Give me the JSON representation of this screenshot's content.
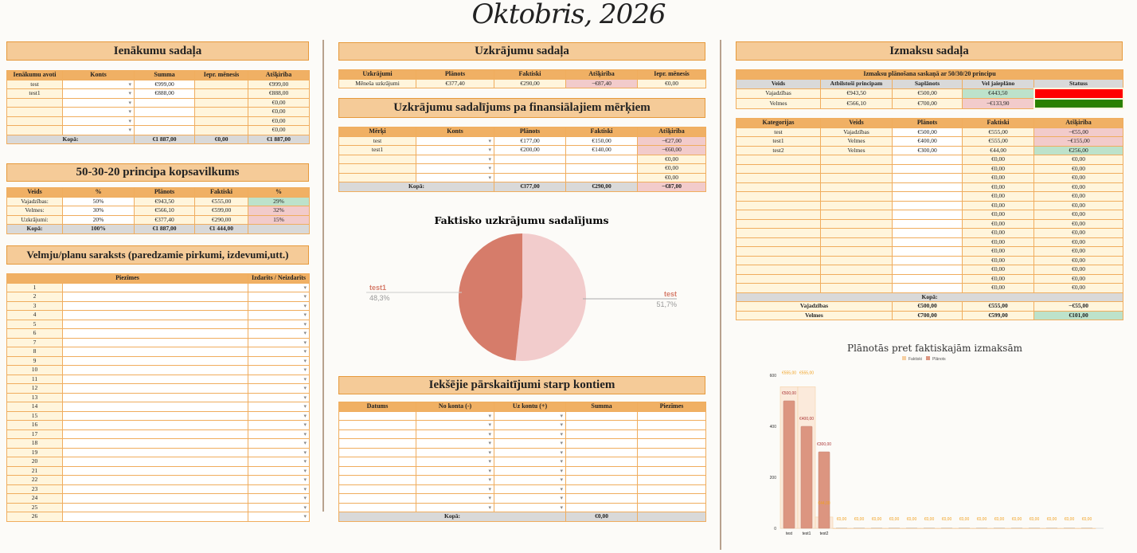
{
  "page_title": "Oktobris, 2026",
  "sections": {
    "income": "Ienākumu sadaļa",
    "summary": "50-30-20 principa kopsavilkums",
    "wishlist": "Velmju/planu saraksts (paredzamie pirkumi, izdevumi,utt.)",
    "savings": "Uzkrājumu sadaļa",
    "goals": "Uzkrājumu sadalījums pa finansiālajiem mērķiem",
    "transfers": "Iekšējie pārskaitījumi starp kontiem",
    "expenses": "Izmaksu sadaļa"
  },
  "tables": {
    "income": {
      "headers": [
        "Ienākumu avoti",
        "Konts",
        "Summa",
        "Iepr. mēnesis",
        "Atšķirība"
      ],
      "rows": [
        [
          "test",
          "",
          "€999,00",
          "",
          "€999,00"
        ],
        [
          "test1",
          "",
          "€888,00",
          "",
          "€888,00"
        ],
        [
          "",
          "",
          "",
          "",
          "€0,00"
        ],
        [
          "",
          "",
          "",
          "",
          "€0,00"
        ],
        [
          "",
          "",
          "",
          "",
          "€0,00"
        ],
        [
          "",
          "",
          "",
          "",
          "€0,00"
        ]
      ],
      "totals": [
        [
          {
            "v": "Kopā:",
            "span": 2
          },
          "€1 887,00",
          "€0,00",
          "€1 887,00"
        ]
      ]
    },
    "summary": {
      "headers": [
        "Veids",
        "%",
        "Plānots",
        "Faktiski",
        "%"
      ],
      "rows": [
        [
          "Vajadzības:",
          "50%",
          "€943,50",
          "€555,00",
          {
            "v": "29%",
            "tone": "pos"
          }
        ],
        [
          "Velmes:",
          "30%",
          "€566,10",
          "€599,00",
          {
            "v": "32%",
            "tone": "neg"
          }
        ],
        [
          "Uzkrājumi:",
          "20%",
          "€377,40",
          "€290,00",
          {
            "v": "15%",
            "tone": "neg"
          }
        ]
      ],
      "totals": [
        [
          "Kopā:",
          "100%",
          "€1 887,00",
          "€1 444,00",
          ""
        ]
      ]
    },
    "wishlist": {
      "headers": [
        "",
        "Piezīmes",
        "Izdarīts / Neizdarīts"
      ],
      "rows": [
        [
          "1",
          "",
          ""
        ],
        [
          "2",
          "",
          ""
        ],
        [
          "3",
          "",
          ""
        ],
        [
          "4",
          "",
          ""
        ],
        [
          "5",
          "",
          ""
        ],
        [
          "6",
          "",
          ""
        ],
        [
          "7",
          "",
          ""
        ],
        [
          "8",
          "",
          ""
        ],
        [
          "9",
          "",
          ""
        ],
        [
          "10",
          "",
          ""
        ],
        [
          "11",
          "",
          ""
        ],
        [
          "12",
          "",
          ""
        ],
        [
          "13",
          "",
          ""
        ],
        [
          "14",
          "",
          ""
        ],
        [
          "15",
          "",
          ""
        ],
        [
          "16",
          "",
          ""
        ],
        [
          "17",
          "",
          ""
        ],
        [
          "18",
          "",
          ""
        ],
        [
          "19",
          "",
          ""
        ],
        [
          "20",
          "",
          ""
        ],
        [
          "21",
          "",
          ""
        ],
        [
          "22",
          "",
          ""
        ],
        [
          "23",
          "",
          ""
        ],
        [
          "24",
          "",
          ""
        ],
        [
          "25",
          "",
          ""
        ],
        [
          "26",
          "",
          ""
        ]
      ]
    },
    "savings": {
      "headers": [
        "Uzkrājumi",
        "Plānots",
        "Faktiski",
        "Atšķirība",
        "Iepr. mēnesis"
      ],
      "rows": [
        [
          "Mēneša uzkrājumi",
          "€377,40",
          "€290,00",
          {
            "v": "−€87,40",
            "tone": "neg"
          },
          "€0,00"
        ]
      ]
    },
    "goals": {
      "headers": [
        "Mērķi",
        "Konts",
        "Plānots",
        "Faktiski",
        "Atšķirība"
      ],
      "rows": [
        [
          "test",
          "",
          "€177,00",
          "€150,00",
          {
            "v": "−€27,00",
            "tone": "neg"
          }
        ],
        [
          "test1",
          "",
          "€200,00",
          "€140,00",
          {
            "v": "−€60,00",
            "tone": "neg"
          }
        ],
        [
          "",
          "",
          "",
          "",
          "€0,00"
        ],
        [
          "",
          "",
          "",
          "",
          "€0,00"
        ],
        [
          "",
          "",
          "",
          "",
          "€0,00"
        ]
      ],
      "totals": [
        [
          {
            "v": "Kopā:",
            "span": 2
          },
          "€377,00",
          "€290,00",
          {
            "v": "−€87,00",
            "tone": "neg"
          }
        ]
      ]
    },
    "transfers": {
      "headers": [
        "Datums",
        "No konta (-)",
        "Uz kontu (+)",
        "Summa",
        "Piezīmes"
      ],
      "rows": [
        [
          "",
          "",
          "",
          "",
          ""
        ],
        [
          "",
          "",
          "",
          "",
          ""
        ],
        [
          "",
          "",
          "",
          "",
          ""
        ],
        [
          "",
          "",
          "",
          "",
          ""
        ],
        [
          "",
          "",
          "",
          "",
          ""
        ],
        [
          "",
          "",
          "",
          "",
          ""
        ],
        [
          "",
          "",
          "",
          "",
          ""
        ],
        [
          "",
          "",
          "",
          "",
          ""
        ],
        [
          "",
          "",
          "",
          "",
          ""
        ],
        [
          "",
          "",
          "",
          "",
          ""
        ],
        [
          "",
          "",
          "",
          "",
          ""
        ]
      ],
      "totals": [
        [
          {
            "v": "Kopā:",
            "span": 3
          },
          "€0,00",
          ""
        ]
      ]
    },
    "planning": {
      "caption": "Izmaksu plānošana saskaņā ar 50/30/20 principu",
      "headers": [
        "Veids",
        "Atbilstoši principam",
        "Saplānots",
        "Vel jaieplāno",
        "Statuss"
      ],
      "rows": [
        [
          "Vajadzības",
          "€943,50",
          "€500,00",
          {
            "v": "€443,50",
            "tone": "pos"
          },
          {
            "v": "",
            "tone": "red"
          }
        ],
        [
          "Velmes",
          "€566,10",
          "€700,00",
          {
            "v": "−€133,90",
            "tone": "neg"
          },
          {
            "v": "",
            "tone": "green"
          }
        ]
      ]
    },
    "categories": {
      "headers": [
        "Kategorijas",
        "Veids",
        "Plānots",
        "Faktiski",
        "Atšķirība"
      ],
      "rows": [
        [
          "test",
          "Vajadzības",
          "€500,00",
          "€555,00",
          {
            "v": "−€55,00",
            "tone": "neg"
          }
        ],
        [
          "test1",
          "Velmes",
          "€400,00",
          "€555,00",
          {
            "v": "−€155,00",
            "tone": "neg"
          }
        ],
        [
          "test2",
          "Velmes",
          "€300,00",
          "€44,00",
          {
            "v": "€256,00",
            "tone": "pos"
          }
        ],
        [
          "",
          "",
          "",
          "€0,00",
          "€0,00"
        ],
        [
          "",
          "",
          "",
          "€0,00",
          "€0,00"
        ],
        [
          "",
          "",
          "",
          "€0,00",
          "€0,00"
        ],
        [
          "",
          "",
          "",
          "€0,00",
          "€0,00"
        ],
        [
          "",
          "",
          "",
          "€0,00",
          "€0,00"
        ],
        [
          "",
          "",
          "",
          "€0,00",
          "€0,00"
        ],
        [
          "",
          "",
          "",
          "€0,00",
          "€0,00"
        ],
        [
          "",
          "",
          "",
          "€0,00",
          "€0,00"
        ],
        [
          "",
          "",
          "",
          "€0,00",
          "€0,00"
        ],
        [
          "",
          "",
          "",
          "€0,00",
          "€0,00"
        ],
        [
          "",
          "",
          "",
          "€0,00",
          "€0,00"
        ],
        [
          "",
          "",
          "",
          "€0,00",
          "€0,00"
        ],
        [
          "",
          "",
          "",
          "€0,00",
          "€0,00"
        ],
        [
          "",
          "",
          "",
          "€0,00",
          "€0,00"
        ],
        [
          "",
          "",
          "",
          "€0,00",
          "€0,00"
        ]
      ],
      "totals": [
        [
          {
            "v": "Kopā:",
            "span": 5,
            "tone": "g"
          }
        ],
        [
          {
            "v": "Vajadzības",
            "span": 2,
            "tone": "b"
          },
          {
            "v": "€500,00",
            "tone": "b"
          },
          {
            "v": "€555,00",
            "tone": "b"
          },
          {
            "v": "−€55,00",
            "tone": "b"
          }
        ],
        [
          {
            "v": "Velmes",
            "span": 2,
            "tone": "b"
          },
          {
            "v": "€700,00",
            "tone": "b"
          },
          {
            "v": "€599,00",
            "tone": "b"
          },
          {
            "v": "€101,00",
            "tone": "pos"
          }
        ]
      ]
    }
  },
  "chart_data": [
    {
      "type": "pie",
      "title": "Faktisko uzkrājumu sadalījums",
      "labels": [
        "test",
        "test1"
      ],
      "values": [
        51.7,
        48.3
      ],
      "value_labels": [
        "51,7%",
        "48,3%"
      ],
      "colors": [
        "#f2cccc",
        "#d67c6a"
      ]
    },
    {
      "type": "bar",
      "title": "Plānotās pret faktiskajām izmaksām",
      "legend": [
        "Faktiski",
        "Plānots"
      ],
      "legend_position": "top",
      "categories": [
        "test",
        "test1",
        "test2",
        "",
        "",
        "",
        "",
        "",
        "",
        "",
        "",
        "",
        "",
        "",
        "",
        "",
        "",
        ""
      ],
      "series": [
        {
          "name": "Faktiski",
          "values": [
            555,
            555,
            44,
            0,
            0,
            0,
            0,
            0,
            0,
            0,
            0,
            0,
            0,
            0,
            0,
            0,
            0,
            0
          ],
          "labels": [
            "€555,00",
            "€555,00",
            "€44,00",
            "€0,00",
            "€0,00",
            "€0,00",
            "€0,00",
            "€0,00",
            "€0,00",
            "€0,00",
            "€0,00",
            "€0,00",
            "€0,00",
            "€0,00",
            "€0,00",
            "€0,00",
            "€0,00",
            "€0,00"
          ],
          "color": "#f6cfa0"
        },
        {
          "name": "Plānots",
          "values": [
            500,
            400,
            300,
            0,
            0,
            0,
            0,
            0,
            0,
            0,
            0,
            0,
            0,
            0,
            0,
            0,
            0,
            0
          ],
          "labels": [
            "€500,00",
            "€400,00",
            "€300,00"
          ],
          "color": "#dc9580"
        }
      ],
      "yticks": [
        "0",
        "200",
        "400",
        "600"
      ],
      "ylim": [
        0,
        600
      ]
    }
  ]
}
